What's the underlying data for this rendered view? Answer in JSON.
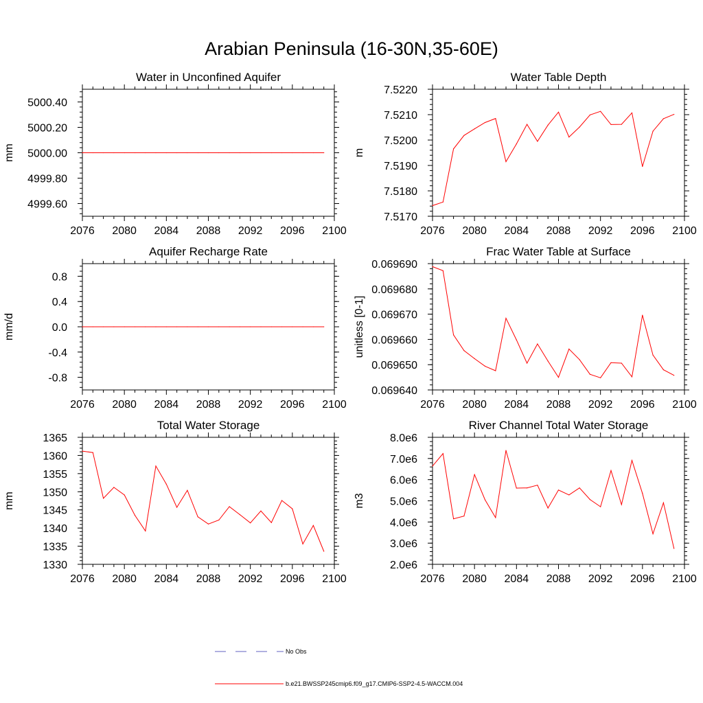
{
  "title": "Arabian Peninsula (16-30N,35-60E)",
  "legend": {
    "items": [
      {
        "label": "No Obs",
        "color": "#6060c0",
        "style": "dashed"
      },
      {
        "label": "b.e21.BWSSP245cmip6.f09_g17.CMIP6-SSP2-4.5-WACCM.004",
        "color": "#ff0000",
        "style": "solid"
      }
    ]
  },
  "chart_data": [
    {
      "type": "line",
      "title": "Water in Unconfined Aquifer",
      "ylabel": "mm",
      "xlim": [
        2076,
        2100
      ],
      "ylim": [
        4999.5,
        5000.5
      ],
      "xticks": [
        "2076",
        "2080",
        "2084",
        "2088",
        "2092",
        "2096",
        "2100"
      ],
      "yticks": [
        {
          "v": 4999.6,
          "label": "4999.60"
        },
        {
          "v": 4999.8,
          "label": "4999.80"
        },
        {
          "v": 5000.0,
          "label": "5000.00"
        },
        {
          "v": 5000.2,
          "label": "5000.20"
        },
        {
          "v": 5000.4,
          "label": "5000.40"
        }
      ],
      "series": [
        {
          "color": "#ff0000",
          "x": [
            2076,
            2077,
            2078,
            2079,
            2080,
            2081,
            2082,
            2083,
            2084,
            2085,
            2086,
            2087,
            2088,
            2089,
            2090,
            2091,
            2092,
            2093,
            2094,
            2095,
            2096,
            2097,
            2098,
            2099
          ],
          "values": [
            5000,
            5000,
            5000,
            5000,
            5000,
            5000,
            5000,
            5000,
            5000,
            5000,
            5000,
            5000,
            5000,
            5000,
            5000,
            5000,
            5000,
            5000,
            5000,
            5000,
            5000,
            5000,
            5000,
            5000
          ]
        }
      ]
    },
    {
      "type": "line",
      "title": "Water Table Depth",
      "ylabel": "m",
      "xlim": [
        2076,
        2100
      ],
      "ylim": [
        7.517,
        7.522
      ],
      "xticks": [
        "2076",
        "2080",
        "2084",
        "2088",
        "2092",
        "2096",
        "2100"
      ],
      "yticks": [
        {
          "v": 7.517,
          "label": "7.5170"
        },
        {
          "v": 7.518,
          "label": "7.5180"
        },
        {
          "v": 7.519,
          "label": "7.5190"
        },
        {
          "v": 7.52,
          "label": "7.5200"
        },
        {
          "v": 7.521,
          "label": "7.5210"
        },
        {
          "v": 7.522,
          "label": "7.5220"
        }
      ],
      "series": [
        {
          "color": "#ff0000",
          "x": [
            2076,
            2077,
            2078,
            2079,
            2080,
            2081,
            2082,
            2083,
            2084,
            2085,
            2086,
            2087,
            2088,
            2089,
            2090,
            2091,
            2092,
            2093,
            2094,
            2095,
            2096,
            2097,
            2098,
            2099
          ],
          "values": [
            7.51742,
            7.51756,
            7.51965,
            7.52018,
            7.52044,
            7.52069,
            7.52085,
            7.51915,
            7.51985,
            7.52062,
            7.51995,
            7.52059,
            7.5211,
            7.52012,
            7.52051,
            7.52099,
            7.52113,
            7.52061,
            7.52062,
            7.52107,
            7.51896,
            7.52035,
            7.52084,
            7.52101
          ]
        }
      ]
    },
    {
      "type": "line",
      "title": "Aquifer Recharge Rate",
      "ylabel": "mm/d",
      "xlim": [
        2076,
        2100
      ],
      "ylim": [
        -1.0,
        1.0
      ],
      "xticks": [
        "2076",
        "2080",
        "2084",
        "2088",
        "2092",
        "2096",
        "2100"
      ],
      "yticks": [
        {
          "v": -0.8,
          "label": "-0.8"
        },
        {
          "v": -0.4,
          "label": "-0.4"
        },
        {
          "v": 0.0,
          "label": "0.0"
        },
        {
          "v": 0.4,
          "label": "0.4"
        },
        {
          "v": 0.8,
          "label": "0.8"
        }
      ],
      "series": [
        {
          "color": "#ff0000",
          "x": [
            2076,
            2077,
            2078,
            2079,
            2080,
            2081,
            2082,
            2083,
            2084,
            2085,
            2086,
            2087,
            2088,
            2089,
            2090,
            2091,
            2092,
            2093,
            2094,
            2095,
            2096,
            2097,
            2098,
            2099
          ],
          "values": [
            0,
            0,
            0,
            0,
            0,
            0,
            0,
            0,
            0,
            0,
            0,
            0,
            0,
            0,
            0,
            0,
            0,
            0,
            0,
            0,
            0,
            0,
            0,
            0
          ]
        }
      ]
    },
    {
      "type": "line",
      "title": "Frac Water Table at Surface",
      "ylabel": "unitless [0-1]",
      "xlim": [
        2076,
        2100
      ],
      "ylim": [
        0.06964,
        0.06969
      ],
      "xticks": [
        "2076",
        "2080",
        "2084",
        "2088",
        "2092",
        "2096",
        "2100"
      ],
      "yticks": [
        {
          "v": 0.06964,
          "label": "0.069640"
        },
        {
          "v": 0.06965,
          "label": "0.069650"
        },
        {
          "v": 0.06966,
          "label": "0.069660"
        },
        {
          "v": 0.06967,
          "label": "0.069670"
        },
        {
          "v": 0.06968,
          "label": "0.069680"
        },
        {
          "v": 0.06969,
          "label": "0.069690"
        }
      ],
      "series": [
        {
          "color": "#ff0000",
          "x": [
            2076,
            2077,
            2078,
            2079,
            2080,
            2081,
            2082,
            2083,
            2084,
            2085,
            2086,
            2087,
            2088,
            2089,
            2090,
            2091,
            2092,
            2093,
            2094,
            2095,
            2096,
            2097,
            2098,
            2099
          ],
          "values": [
            0.0696888,
            0.0696872,
            0.0696618,
            0.0696556,
            0.0696524,
            0.0696494,
            0.0696476,
            0.0696684,
            0.0696598,
            0.0696506,
            0.0696582,
            0.0696514,
            0.069645,
            0.0696562,
            0.069652,
            0.0696462,
            0.0696448,
            0.0696508,
            0.0696506,
            0.0696452,
            0.0696696,
            0.0696538,
            0.069648,
            0.0696458
          ]
        }
      ]
    },
    {
      "type": "line",
      "title": "Total Water Storage",
      "ylabel": "mm",
      "xlim": [
        2076,
        2100
      ],
      "ylim": [
        1330,
        1365
      ],
      "xticks": [
        "2076",
        "2080",
        "2084",
        "2088",
        "2092",
        "2096",
        "2100"
      ],
      "yticks": [
        {
          "v": 1330,
          "label": "1330"
        },
        {
          "v": 1335,
          "label": "1335"
        },
        {
          "v": 1340,
          "label": "1340"
        },
        {
          "v": 1345,
          "label": "1345"
        },
        {
          "v": 1350,
          "label": "1350"
        },
        {
          "v": 1355,
          "label": "1355"
        },
        {
          "v": 1360,
          "label": "1360"
        },
        {
          "v": 1365,
          "label": "1365"
        }
      ],
      "series": [
        {
          "color": "#ff0000",
          "x": [
            2076,
            2077,
            2078,
            2079,
            2080,
            2081,
            2082,
            2083,
            2084,
            2085,
            2086,
            2087,
            2088,
            2089,
            2090,
            2091,
            2092,
            2093,
            2094,
            2095,
            2096,
            2097,
            2098,
            2099
          ],
          "values": [
            1361.2,
            1360.8,
            1348.2,
            1351.2,
            1349.1,
            1343.5,
            1339.2,
            1357.1,
            1352.1,
            1345.7,
            1350.4,
            1343.1,
            1341.1,
            1342.2,
            1345.9,
            1343.7,
            1341.4,
            1344.7,
            1341.5,
            1347.6,
            1345.3,
            1335.6,
            1340.7,
            1333.6
          ]
        }
      ]
    },
    {
      "type": "line",
      "title": "River Channel Total Water Storage",
      "ylabel": "m3",
      "xlim": [
        2076,
        2100
      ],
      "ylim": [
        2000000,
        8000000
      ],
      "xticks": [
        "2076",
        "2080",
        "2084",
        "2088",
        "2092",
        "2096",
        "2100"
      ],
      "yticks": [
        {
          "v": 2000000,
          "label": "2.0e6"
        },
        {
          "v": 3000000,
          "label": "3.0e6"
        },
        {
          "v": 4000000,
          "label": "4.0e6"
        },
        {
          "v": 5000000,
          "label": "5.0e6"
        },
        {
          "v": 6000000,
          "label": "6.0e6"
        },
        {
          "v": 7000000,
          "label": "7.0e6"
        },
        {
          "v": 8000000,
          "label": "8.0e6"
        }
      ],
      "series": [
        {
          "color": "#ff0000",
          "x": [
            2076,
            2077,
            2078,
            2079,
            2080,
            2081,
            2082,
            2083,
            2084,
            2085,
            2086,
            2087,
            2088,
            2089,
            2090,
            2091,
            2092,
            2093,
            2094,
            2095,
            2096,
            2097,
            2098,
            2099
          ],
          "values": [
            6640000,
            7230000,
            4150000,
            4280000,
            6240000,
            5050000,
            4210000,
            7380000,
            5600000,
            5610000,
            5740000,
            4660000,
            5510000,
            5280000,
            5610000,
            5060000,
            4720000,
            6430000,
            4820000,
            6910000,
            5350000,
            3440000,
            4910000,
            2750000
          ]
        }
      ]
    }
  ]
}
